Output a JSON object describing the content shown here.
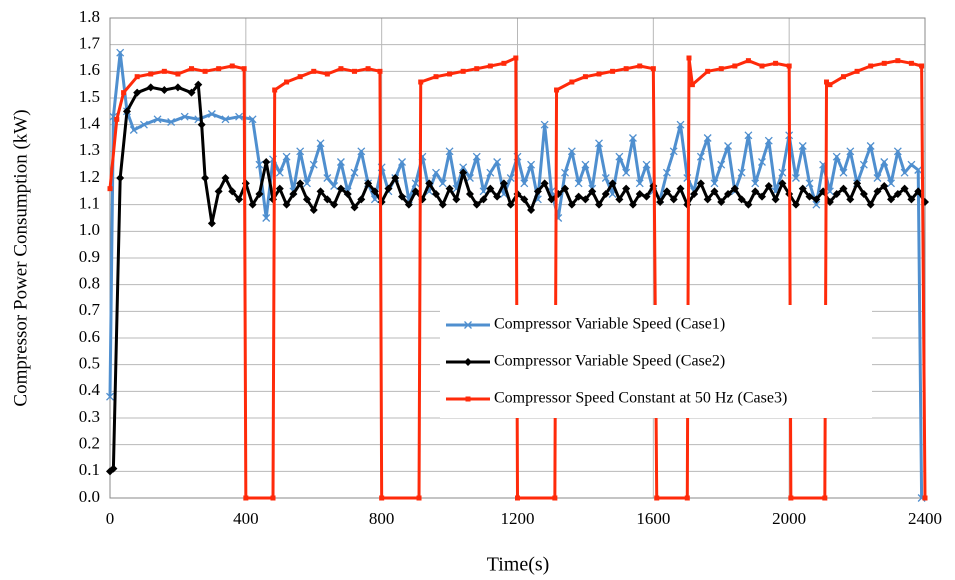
{
  "chart_data": {
    "type": "line",
    "xlabel": "Time(s)",
    "ylabel": "Compressor Power Consumption (kW)",
    "xlim": [
      0,
      2400
    ],
    "xticks": [
      0,
      400,
      800,
      1200,
      1600,
      2000,
      2400
    ],
    "ylim": [
      0,
      1.8
    ],
    "yticks": [
      {
        "value": 0,
        "label": "0.0"
      },
      0.1,
      0.2,
      0.3,
      0.4,
      0.5,
      0.6,
      0.7,
      0.8,
      0.9,
      {
        "value": 1,
        "label": "1.0"
      },
      1.1,
      1.2,
      1.3,
      1.4,
      1.5,
      1.6,
      1.7,
      1.8
    ],
    "grid": true,
    "legend": "center-right",
    "series": [
      {
        "name": "Compressor Variable Speed (Case1)",
        "color": "#4f8fcf",
        "marker": "x",
        "x": [
          0,
          10,
          30,
          50,
          70,
          100,
          140,
          180,
          220,
          260,
          300,
          340,
          380,
          420,
          440,
          460,
          480,
          500,
          520,
          540,
          560,
          580,
          600,
          620,
          640,
          660,
          680,
          700,
          720,
          740,
          760,
          780,
          800,
          820,
          840,
          860,
          880,
          900,
          920,
          940,
          960,
          980,
          1000,
          1020,
          1040,
          1060,
          1080,
          1100,
          1120,
          1140,
          1160,
          1180,
          1200,
          1220,
          1240,
          1260,
          1280,
          1300,
          1320,
          1340,
          1360,
          1380,
          1400,
          1420,
          1440,
          1460,
          1480,
          1500,
          1520,
          1540,
          1560,
          1580,
          1600,
          1620,
          1640,
          1660,
          1680,
          1700,
          1720,
          1740,
          1760,
          1780,
          1800,
          1820,
          1840,
          1860,
          1880,
          1900,
          1920,
          1940,
          1960,
          1980,
          2000,
          2020,
          2040,
          2060,
          2080,
          2100,
          2120,
          2140,
          2160,
          2180,
          2200,
          2220,
          2240,
          2260,
          2280,
          2300,
          2320,
          2340,
          2360,
          2380,
          2390
        ],
        "values": [
          0.38,
          1.43,
          1.67,
          1.45,
          1.38,
          1.4,
          1.42,
          1.41,
          1.43,
          1.42,
          1.44,
          1.42,
          1.43,
          1.42,
          1.25,
          1.05,
          1.27,
          1.22,
          1.28,
          1.15,
          1.3,
          1.18,
          1.25,
          1.33,
          1.2,
          1.17,
          1.26,
          1.15,
          1.22,
          1.3,
          1.18,
          1.12,
          1.24,
          1.15,
          1.2,
          1.26,
          1.12,
          1.18,
          1.28,
          1.15,
          1.22,
          1.18,
          1.3,
          1.16,
          1.24,
          1.2,
          1.28,
          1.15,
          1.22,
          1.26,
          1.14,
          1.2,
          1.28,
          1.18,
          1.25,
          1.12,
          1.4,
          1.15,
          1.05,
          1.22,
          1.3,
          1.18,
          1.25,
          1.16,
          1.33,
          1.2,
          1.14,
          1.28,
          1.22,
          1.35,
          1.18,
          1.25,
          1.15,
          1.12,
          1.22,
          1.3,
          1.4,
          1.2,
          1.15,
          1.28,
          1.35,
          1.18,
          1.25,
          1.32,
          1.15,
          1.22,
          1.36,
          1.18,
          1.26,
          1.34,
          1.15,
          1.22,
          1.36,
          1.2,
          1.32,
          1.18,
          1.1,
          1.25,
          1.15,
          1.28,
          1.22,
          1.3,
          1.18,
          1.25,
          1.32,
          1.2,
          1.26,
          1.18,
          1.3,
          1.22,
          1.25,
          1.23,
          0
        ]
      },
      {
        "name": "Compressor Variable Speed (Case2)",
        "color": "#000000",
        "marker": "diamond",
        "x": [
          0,
          10,
          30,
          50,
          80,
          120,
          160,
          200,
          240,
          260,
          270,
          280,
          300,
          320,
          340,
          360,
          380,
          400,
          420,
          440,
          460,
          480,
          500,
          520,
          540,
          560,
          580,
          600,
          620,
          640,
          660,
          680,
          700,
          720,
          740,
          760,
          780,
          800,
          820,
          840,
          860,
          880,
          900,
          920,
          940,
          960,
          980,
          1000,
          1020,
          1040,
          1060,
          1080,
          1100,
          1120,
          1140,
          1160,
          1180,
          1200,
          1220,
          1240,
          1260,
          1280,
          1300,
          1320,
          1340,
          1360,
          1380,
          1400,
          1420,
          1440,
          1460,
          1480,
          1500,
          1520,
          1540,
          1560,
          1580,
          1600,
          1620,
          1640,
          1660,
          1680,
          1700,
          1720,
          1740,
          1760,
          1780,
          1800,
          1820,
          1840,
          1860,
          1880,
          1900,
          1920,
          1940,
          1960,
          1980,
          2000,
          2020,
          2040,
          2060,
          2080,
          2100,
          2120,
          2140,
          2160,
          2180,
          2200,
          2220,
          2240,
          2260,
          2280,
          2300,
          2320,
          2340,
          2360,
          2380,
          2400
        ],
        "values": [
          0.1,
          0.11,
          1.2,
          1.45,
          1.52,
          1.54,
          1.53,
          1.54,
          1.52,
          1.55,
          1.4,
          1.2,
          1.03,
          1.15,
          1.2,
          1.15,
          1.12,
          1.18,
          1.1,
          1.14,
          1.26,
          1.12,
          1.16,
          1.1,
          1.14,
          1.18,
          1.12,
          1.08,
          1.15,
          1.12,
          1.1,
          1.16,
          1.14,
          1.09,
          1.12,
          1.18,
          1.15,
          1.11,
          1.16,
          1.2,
          1.13,
          1.1,
          1.15,
          1.12,
          1.18,
          1.14,
          1.1,
          1.16,
          1.12,
          1.22,
          1.14,
          1.1,
          1.12,
          1.16,
          1.13,
          1.18,
          1.1,
          1.14,
          1.12,
          1.08,
          1.15,
          1.18,
          1.12,
          1.14,
          1.16,
          1.1,
          1.13,
          1.12,
          1.15,
          1.1,
          1.14,
          1.18,
          1.12,
          1.16,
          1.1,
          1.14,
          1.13,
          1.17,
          1.11,
          1.15,
          1.12,
          1.16,
          1.1,
          1.14,
          1.18,
          1.12,
          1.15,
          1.11,
          1.14,
          1.16,
          1.12,
          1.1,
          1.15,
          1.13,
          1.17,
          1.12,
          1.18,
          1.14,
          1.1,
          1.16,
          1.13,
          1.12,
          1.15,
          1.11,
          1.14,
          1.16,
          1.12,
          1.18,
          1.14,
          1.1,
          1.15,
          1.17,
          1.12,
          1.14,
          1.16,
          1.12,
          1.15,
          1.11
        ]
      },
      {
        "name": "Compressor Speed Constant at 50 Hz (Case3)",
        "color": "#ff2a0a",
        "marker": "square",
        "x": [
          0,
          20,
          40,
          80,
          120,
          160,
          200,
          240,
          280,
          320,
          360,
          395,
          400,
          480,
          485,
          520,
          560,
          600,
          640,
          680,
          720,
          760,
          795,
          800,
          910,
          915,
          960,
          1000,
          1040,
          1080,
          1120,
          1160,
          1195,
          1200,
          1310,
          1315,
          1360,
          1400,
          1440,
          1480,
          1520,
          1560,
          1600,
          1610,
          1700,
          1705,
          1715,
          1760,
          1800,
          1840,
          1880,
          1920,
          1960,
          2000,
          2005,
          2105,
          2110,
          2120,
          2160,
          2200,
          2240,
          2280,
          2320,
          2360,
          2390,
          2400
        ],
        "values": [
          1.16,
          1.42,
          1.52,
          1.58,
          1.59,
          1.6,
          1.59,
          1.61,
          1.6,
          1.61,
          1.62,
          1.61,
          0,
          0,
          1.53,
          1.56,
          1.58,
          1.6,
          1.59,
          1.61,
          1.6,
          1.61,
          1.6,
          0,
          0,
          1.56,
          1.58,
          1.59,
          1.6,
          1.61,
          1.62,
          1.63,
          1.65,
          0,
          0,
          1.53,
          1.56,
          1.58,
          1.59,
          1.6,
          1.61,
          1.62,
          1.61,
          0,
          0,
          1.65,
          1.55,
          1.6,
          1.61,
          1.62,
          1.64,
          1.62,
          1.63,
          1.62,
          0,
          0,
          1.56,
          1.55,
          1.58,
          1.6,
          1.62,
          1.63,
          1.64,
          1.63,
          1.62,
          0
        ]
      }
    ]
  }
}
